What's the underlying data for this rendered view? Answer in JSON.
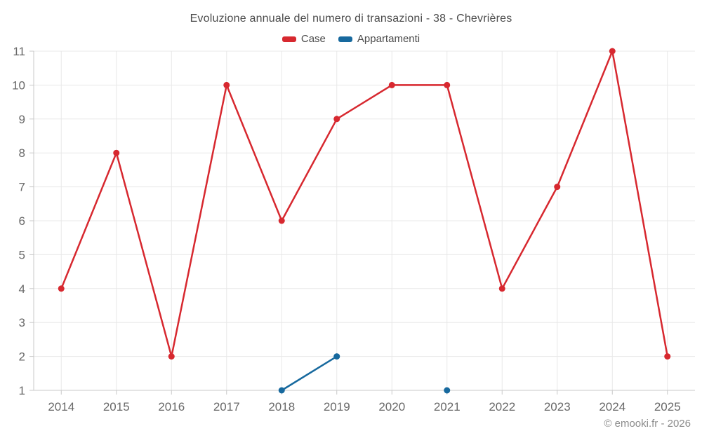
{
  "title": "Evoluzione annuale del numero di transazioni - 38 - Chevrières",
  "watermark": "© emooki.fr - 2026",
  "colors": {
    "case_red": "#d7282f",
    "appartamenti_blue": "#17699e",
    "grid_line": "#e8e8e8",
    "axis_line": "#c9c9c9",
    "tick_label": "#696969",
    "title_text": "#4c4c4c",
    "watermark_text": "#8c8c8c"
  },
  "chart_data": {
    "type": "line",
    "title": "Evoluzione annuale del numero di transazioni - 38 - Chevrières",
    "categories": [
      "2014",
      "2015",
      "2016",
      "2017",
      "2018",
      "2019",
      "2020",
      "2021",
      "2022",
      "2023",
      "2024",
      "2025"
    ],
    "series": [
      {
        "name": "Case",
        "color": "#d7282f",
        "values": [
          4,
          8,
          2,
          10,
          6,
          9,
          10,
          10,
          4,
          7,
          11,
          2
        ]
      },
      {
        "name": "Appartamenti",
        "color": "#17699e",
        "values": [
          null,
          null,
          null,
          null,
          1,
          2,
          null,
          1,
          null,
          null,
          null,
          null
        ]
      }
    ],
    "xlabel": "",
    "ylabel": "",
    "ylim": [
      1,
      11
    ],
    "yticks": [
      1,
      2,
      3,
      4,
      5,
      6,
      7,
      8,
      9,
      10,
      11
    ],
    "grid": true,
    "legend_position": "top"
  }
}
